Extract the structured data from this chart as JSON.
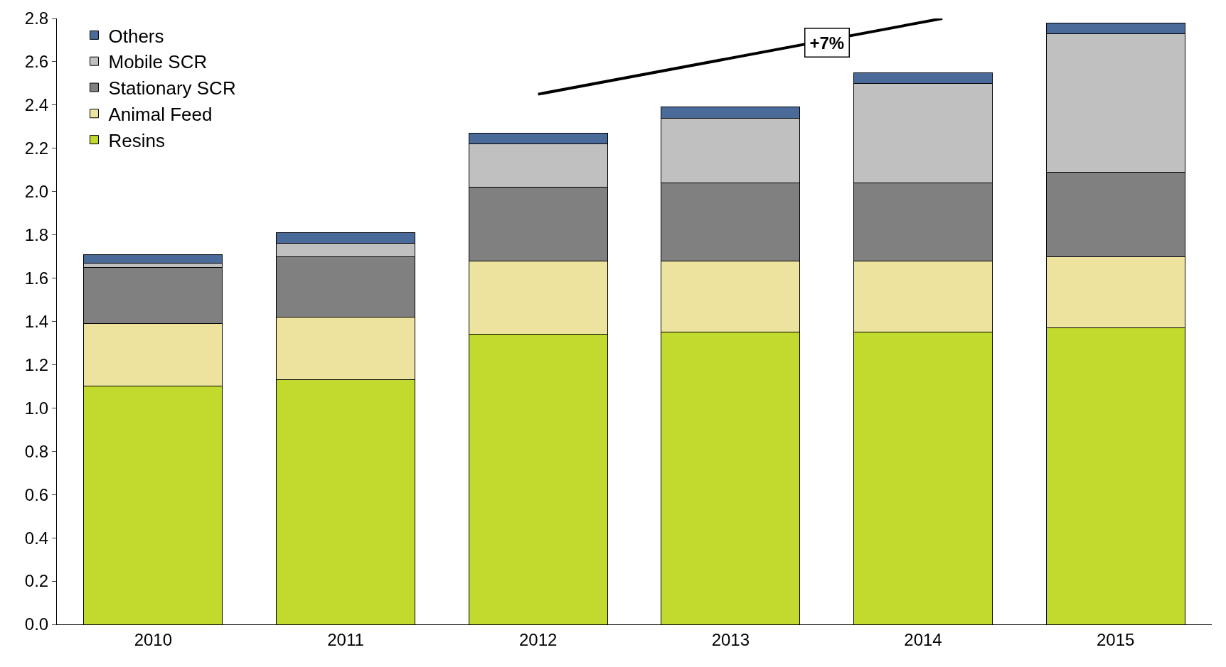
{
  "chart_data": {
    "type": "bar",
    "stacked": true,
    "x": [
      2010,
      2011,
      2012,
      2013,
      2014,
      2015
    ],
    "series": [
      {
        "name": "Resins",
        "color": "#c2d92e",
        "values": [
          1.1,
          1.13,
          1.34,
          1.35,
          1.35,
          1.37
        ]
      },
      {
        "name": "Animal Feed",
        "color": "#ede39e",
        "values": [
          0.29,
          0.29,
          0.34,
          0.33,
          0.33,
          0.33
        ]
      },
      {
        "name": "Stationary SCR",
        "color": "#808080",
        "values": [
          0.26,
          0.28,
          0.34,
          0.36,
          0.36,
          0.39
        ]
      },
      {
        "name": "Mobile SCR",
        "color": "#c0c0c0",
        "values": [
          0.02,
          0.06,
          0.2,
          0.3,
          0.46,
          0.64
        ]
      },
      {
        "name": "Others",
        "color": "#4a6a9a",
        "values": [
          0.04,
          0.05,
          0.05,
          0.05,
          0.05,
          0.05
        ]
      },
      {
        "type": "line",
        "color": "#000000",
        "x": [
          2012,
          2014.1
        ],
        "values": [
          2.45,
          2.8
        ]
      }
    ],
    "xlim": [
      2009.5,
      2015.5
    ],
    "xticks": [
      2010,
      2011,
      2012,
      2013,
      2014,
      2015
    ],
    "ylim": [
      0,
      2.8
    ],
    "yticks": [
      {
        "value": 0,
        "label": "0.0"
      },
      0.2,
      0.4,
      0.6,
      0.8,
      {
        "value": 1,
        "label": "1.0"
      },
      1.2,
      1.4,
      1.6,
      1.8,
      {
        "value": 2,
        "label": "2.0"
      },
      2.2,
      2.4,
      2.6,
      2.8
    ],
    "legend": "top left",
    "annotations": [
      {
        "text": "+7%",
        "x": 2013.5,
        "y": 2.69
      }
    ]
  }
}
